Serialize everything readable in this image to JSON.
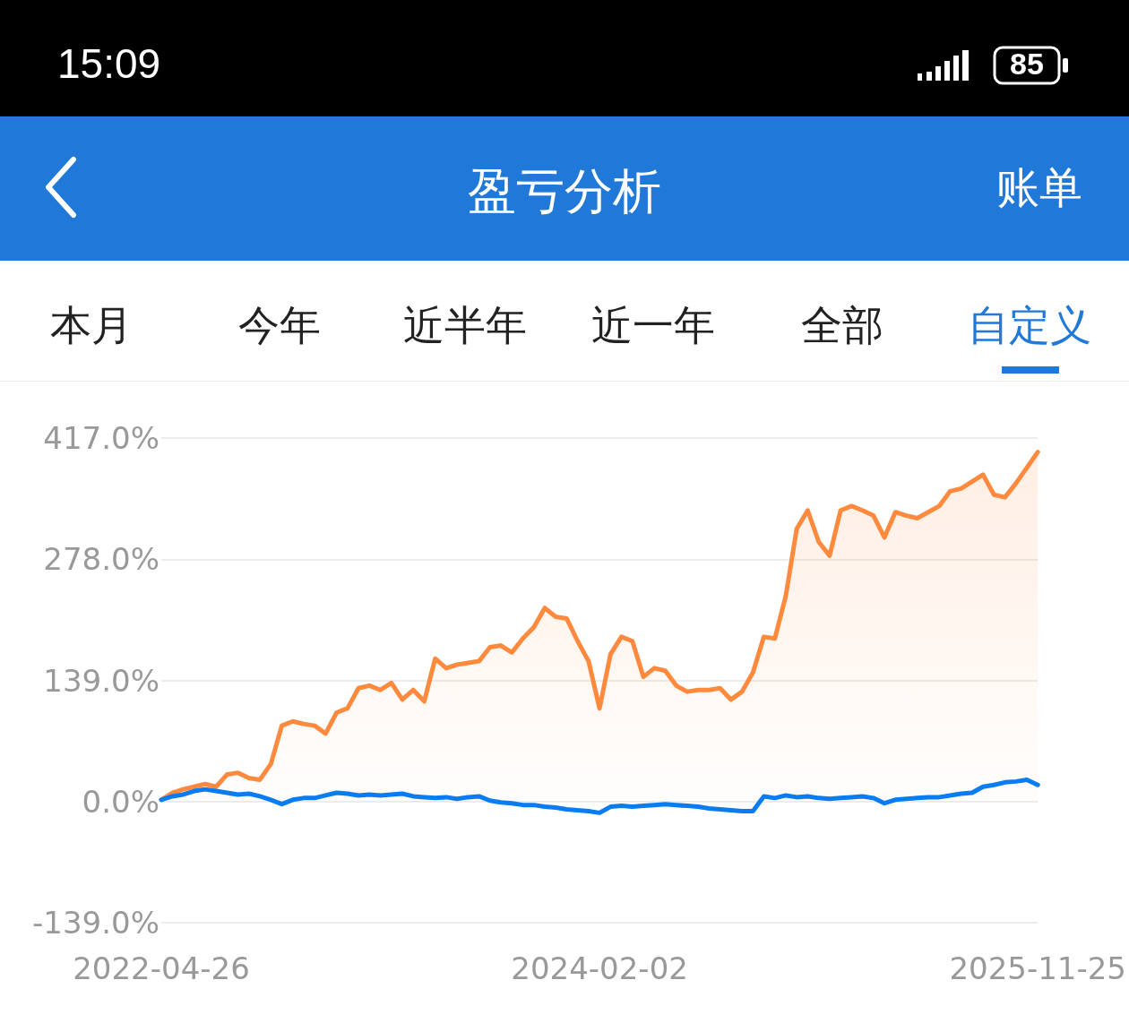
{
  "chart_data": {
    "type": "line",
    "title": "盈亏分析",
    "annotations": [
      "15:09",
      "85",
      "账单",
      "本月",
      "今年",
      "近半年",
      "近一年",
      "全部",
      "自定义"
    ],
    "categories": [
      "2022-04-26",
      null,
      null,
      null,
      null,
      null,
      null,
      null,
      null,
      null,
      null,
      null,
      null,
      null,
      null,
      null,
      null,
      null,
      null,
      null,
      null,
      null,
      null,
      null,
      null,
      null,
      null,
      null,
      null,
      null,
      null,
      null,
      null,
      null,
      null,
      null,
      null,
      null,
      null,
      null,
      "2024-02-02",
      null,
      null,
      null,
      null,
      null,
      null,
      null,
      null,
      null,
      null,
      null,
      null,
      null,
      null,
      null,
      null,
      null,
      null,
      null,
      null,
      null,
      null,
      null,
      null,
      null,
      null,
      null,
      null,
      null,
      null,
      null,
      null,
      null,
      null,
      null,
      null,
      null,
      null,
      null,
      "2025-11-25"
    ],
    "series": [
      {
        "type": "area",
        "color": "#ff8a3d",
        "values": [
          2,
          10,
          14,
          17,
          20,
          17,
          31,
          33,
          27,
          25,
          43,
          87,
          92,
          89,
          87,
          78,
          102,
          107,
          130,
          133,
          128,
          136,
          117,
          128,
          115,
          164,
          153,
          157,
          159,
          161,
          177,
          179,
          171,
          187,
          200,
          222,
          212,
          210,
          184,
          161,
          107,
          169,
          189,
          184,
          143,
          153,
          150,
          133,
          126,
          128,
          128,
          130,
          117,
          126,
          148,
          189,
          187,
          236,
          313,
          334,
          298,
          282,
          334,
          339,
          334,
          328,
          303,
          332,
          328,
          325,
          332,
          339,
          356,
          359,
          367,
          375,
          352,
          349,
          365,
          383,
          401
        ]
      },
      {
        "type": "line",
        "color": "#0a7cf2",
        "values": [
          2,
          6,
          8,
          12,
          14,
          12,
          10,
          8,
          9,
          6,
          2,
          -3,
          2,
          4,
          4,
          7,
          10,
          9,
          7,
          8,
          7,
          8,
          9,
          6,
          5,
          4,
          5,
          3,
          5,
          6,
          1,
          -1,
          -2,
          -4,
          -4,
          -6,
          -7,
          -9,
          -10,
          -11,
          -13,
          -6,
          -5,
          -6,
          -5,
          -4,
          -3,
          -4,
          -5,
          -6,
          -8,
          -9,
          -10,
          -11,
          -11,
          6,
          4,
          7,
          5,
          6,
          4,
          3,
          4,
          5,
          6,
          4,
          -2,
          2,
          3,
          4,
          5,
          5,
          7,
          9,
          10,
          17,
          19,
          22,
          23,
          25,
          19
        ]
      }
    ],
    "ylim": [
      -139,
      417
    ],
    "yticks": [
      {
        "value": -139,
        "label": "-139.0%"
      },
      {
        "value": 0,
        "label": "0.0%"
      },
      {
        "value": 139,
        "label": "139.0%"
      },
      {
        "value": 278,
        "label": "278.0%"
      },
      {
        "value": 417,
        "label": "417.0%"
      }
    ],
    "grid": "y",
    "marker": "none",
    "line_style": "solid"
  }
}
